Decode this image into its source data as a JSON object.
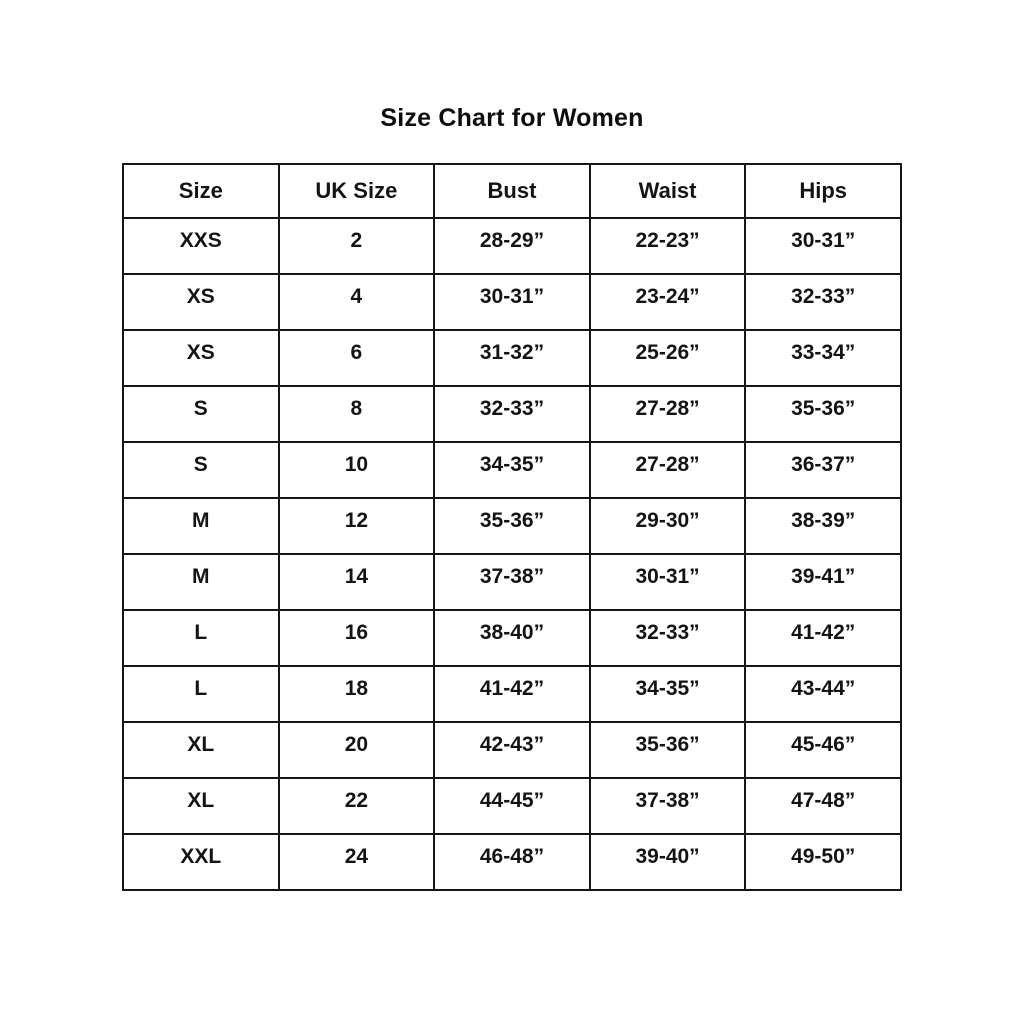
{
  "title": "Size Chart for Women",
  "chart_data": {
    "type": "table",
    "title": "Size Chart for Women",
    "columns": [
      "Size",
      "UK Size",
      "Bust",
      "Waist",
      "Hips"
    ],
    "rows": [
      [
        "XXS",
        "2",
        "28-29”",
        "22-23”",
        "30-31”"
      ],
      [
        "XS",
        "4",
        "30-31”",
        "23-24”",
        "32-33”"
      ],
      [
        "XS",
        "6",
        "31-32”",
        "25-26”",
        "33-34”"
      ],
      [
        "S",
        "8",
        "32-33”",
        "27-28”",
        "35-36”"
      ],
      [
        "S",
        "10",
        "34-35”",
        "27-28”",
        "36-37”"
      ],
      [
        "M",
        "12",
        "35-36”",
        "29-30”",
        "38-39”"
      ],
      [
        "M",
        "14",
        "37-38”",
        "30-31”",
        "39-41”"
      ],
      [
        "L",
        "16",
        "38-40”",
        "32-33”",
        "41-42”"
      ],
      [
        "L",
        "18",
        "41-42”",
        "34-35”",
        "43-44”"
      ],
      [
        "XL",
        "20",
        "42-43”",
        "35-36”",
        "45-46”"
      ],
      [
        "XL",
        "22",
        "44-45”",
        "37-38”",
        "47-48”"
      ],
      [
        "XXL",
        "24",
        "46-48”",
        "39-40”",
        "49-50”"
      ]
    ],
    "layout": {
      "grid": "full-borders",
      "units": "inches",
      "text_color": "#141414",
      "border_color": "#161616",
      "background": "#ffffff"
    }
  }
}
